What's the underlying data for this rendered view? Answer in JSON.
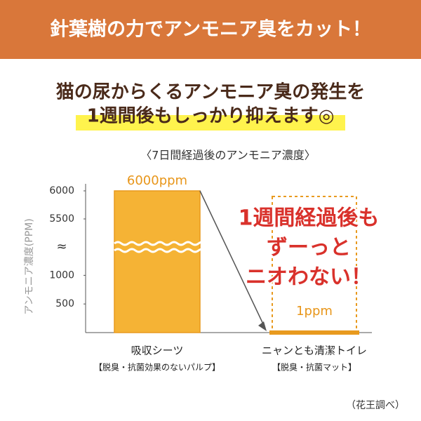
{
  "chart_data": {
    "type": "bar",
    "banner": "針葉樹の力でアンモニア臭をカット！",
    "headline": [
      "猫の尿からくるアンモニア臭の発生を",
      "1週間後もしっかり抑えます◎"
    ],
    "title": "〈7日間経過後のアンモニア濃度〉",
    "ylabel": "アンモニア濃度(PPM)",
    "categories": [
      "吸収シーツ",
      "ニャンとも清潔トイレ"
    ],
    "category_notes": [
      "【脱臭・抗菌効果のないパルプ】",
      "【脱臭・抗菌マット】"
    ],
    "values": [
      6000,
      1
    ],
    "value_labels": [
      "6000ppm",
      "1ppm"
    ],
    "color": "#f5b335",
    "ylim": [
      0,
      6000
    ],
    "yticks": [
      500,
      1000,
      5500,
      6000
    ],
    "axis_break": {
      "label": "≈",
      "range": [
        1250,
        5250
      ]
    },
    "annotation": [
      "1週間経過後も",
      "ずーっと",
      "ニオわない！"
    ],
    "source": "（花王調べ）"
  }
}
